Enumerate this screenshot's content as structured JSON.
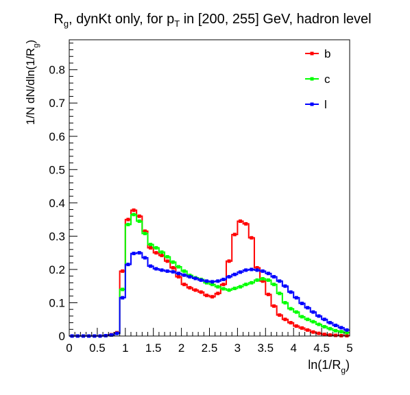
{
  "chart_data": {
    "type": "line",
    "title": {
      "main": "R",
      "sub1": "g",
      "mid": ", dynKt only, for p",
      "sub2": "T",
      "tail": " in [200, 255] GeV, hadron level"
    },
    "xlabel": {
      "main": "ln(1/R",
      "sub": "g",
      "tail": ")"
    },
    "ylabel": {
      "main": "1/N dN/dln(1/R",
      "sub": "g",
      "tail": ")"
    },
    "xlim": [
      0,
      5
    ],
    "ylim": [
      0,
      0.89
    ],
    "x_ticks": [
      "0",
      "0.5",
      "1",
      "1.5",
      "2",
      "2.5",
      "3",
      "3.5",
      "4",
      "4.5",
      "5"
    ],
    "y_ticks": [
      "0",
      "0.1",
      "0.2",
      "0.3",
      "0.4",
      "0.5",
      "0.6",
      "0.7",
      "0.8"
    ],
    "grid": false,
    "legend_position": "top-right",
    "bin_edges": [
      0,
      0.1,
      0.2,
      0.3,
      0.4,
      0.5,
      0.6,
      0.7,
      0.8,
      0.9,
      1.0,
      1.1,
      1.2,
      1.3,
      1.4,
      1.5,
      1.6,
      1.7,
      1.8,
      1.9,
      2.0,
      2.1,
      2.2,
      2.3,
      2.4,
      2.5,
      2.6,
      2.7,
      2.8,
      2.9,
      3.0,
      3.1,
      3.2,
      3.3,
      3.4,
      3.5,
      3.6,
      3.7,
      3.8,
      3.9,
      4.0,
      4.1,
      4.2,
      4.3,
      4.4,
      4.5,
      4.6,
      4.7,
      4.8,
      4.9,
      5.0
    ],
    "series": [
      {
        "name": "b",
        "color": "#ff0000",
        "values": [
          0,
          0,
          0,
          0,
          0,
          0,
          0.001,
          0.004,
          0.01,
          0.195,
          0.35,
          0.378,
          0.36,
          0.315,
          0.265,
          0.25,
          0.242,
          0.225,
          0.205,
          0.178,
          0.155,
          0.145,
          0.138,
          0.132,
          0.122,
          0.118,
          0.128,
          0.155,
          0.225,
          0.305,
          0.345,
          0.337,
          0.295,
          0.205,
          0.165,
          0.125,
          0.09,
          0.063,
          0.05,
          0.04,
          0.03,
          0.024,
          0.018,
          0.012,
          0.008,
          0.005,
          0.003,
          0.002,
          0.001,
          0.001
        ]
      },
      {
        "name": "c",
        "color": "#00ff00",
        "values": [
          0,
          0,
          0,
          0,
          0,
          0,
          0.001,
          0.003,
          0.008,
          0.14,
          0.335,
          0.365,
          0.345,
          0.308,
          0.275,
          0.265,
          0.252,
          0.238,
          0.222,
          0.208,
          0.195,
          0.182,
          0.175,
          0.17,
          0.16,
          0.155,
          0.148,
          0.142,
          0.138,
          0.143,
          0.148,
          0.155,
          0.16,
          0.168,
          0.172,
          0.168,
          0.155,
          0.128,
          0.1,
          0.082,
          0.072,
          0.058,
          0.05,
          0.043,
          0.035,
          0.028,
          0.022,
          0.016,
          0.013,
          0.01
        ]
      },
      {
        "name": "l",
        "color": "#0000ff",
        "values": [
          0,
          0,
          0,
          0,
          0,
          0,
          0.001,
          0.003,
          0.008,
          0.115,
          0.215,
          0.248,
          0.25,
          0.235,
          0.21,
          0.202,
          0.198,
          0.195,
          0.193,
          0.188,
          0.183,
          0.178,
          0.173,
          0.168,
          0.165,
          0.163,
          0.165,
          0.17,
          0.178,
          0.185,
          0.192,
          0.198,
          0.2,
          0.198,
          0.195,
          0.188,
          0.178,
          0.165,
          0.15,
          0.132,
          0.115,
          0.098,
          0.085,
          0.072,
          0.06,
          0.05,
          0.04,
          0.032,
          0.025,
          0.018
        ]
      }
    ]
  }
}
